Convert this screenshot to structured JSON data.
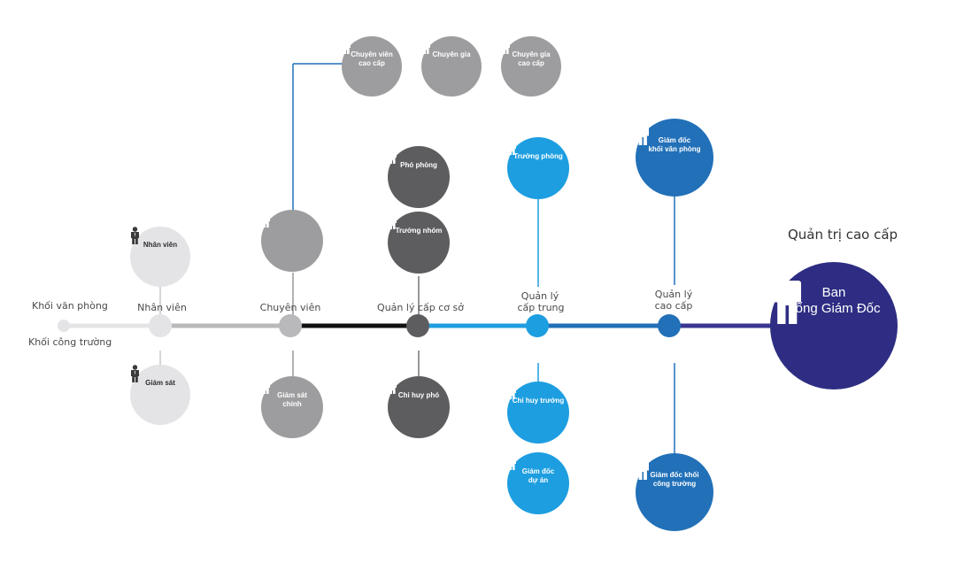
{
  "legend": {
    "office": "Khối văn phòng",
    "site": "Khối công trường"
  },
  "levels": [
    "Nhân viên",
    "Chuyên viên",
    "Quản lý cấp cơ sở",
    "Quản lý",
    "cấp trung",
    "Quản lý",
    "cao cấp"
  ],
  "top_heading": "Quản trị cao cấp",
  "nodes": {
    "staff": "Nhân viên",
    "supervisor": "Giám sát",
    "senior_specialist_office": "Chuyên viên\ncao cấp",
    "expert": "Chuyên gia",
    "senior_expert": "Chuyên gia\ncao cấp",
    "chief_supervisor": "Giám sát\nchính",
    "deputy_head": "Phó phòng",
    "team_leader": "Trưởng nhóm",
    "deputy_commander": "Chỉ huy phó",
    "head_of_department": "Trưởng phòng",
    "site_commander": "Chỉ huy trưởng",
    "project_director": "Giám đốc\ndự án",
    "office_director": "Giám đốc\nkhối văn phòng",
    "site_director": "Giám đốc khối\ncông trường",
    "board": "Ban\nTổng Giám Đốc"
  },
  "icons": {
    "node-staff": "group-people-icon",
    "node-supervisor": "group-people-icon",
    "node-specialist": "group-people-icon",
    "node-senior-specialist-office": "pair-people-icon",
    "node-chief-supervisor": "pair-people-icon",
    "node-expert": "person-icon",
    "node-senior-expert": "person-icon",
    "node-deputy-head": "person-icon",
    "node-team-leader": "person-icon",
    "node-deputy-commander": "person-icon",
    "node-head-of-department": "presenter-icon",
    "node-site-commander": "person-icon",
    "node-project-director": "person-with-document-icon",
    "node-office-director": "person-icon",
    "node-site-director": "person-with-megaphone-icon",
    "node-board-of-directors": "group-people-icon"
  },
  "colors": {
    "office_grey": "#e4e4e6",
    "mid_grey": "#9d9d9f",
    "dark_grey": "#5d5d60",
    "light_blue": "#1d9ee0",
    "blue": "#2170b8",
    "navy": "#2e2d83"
  }
}
